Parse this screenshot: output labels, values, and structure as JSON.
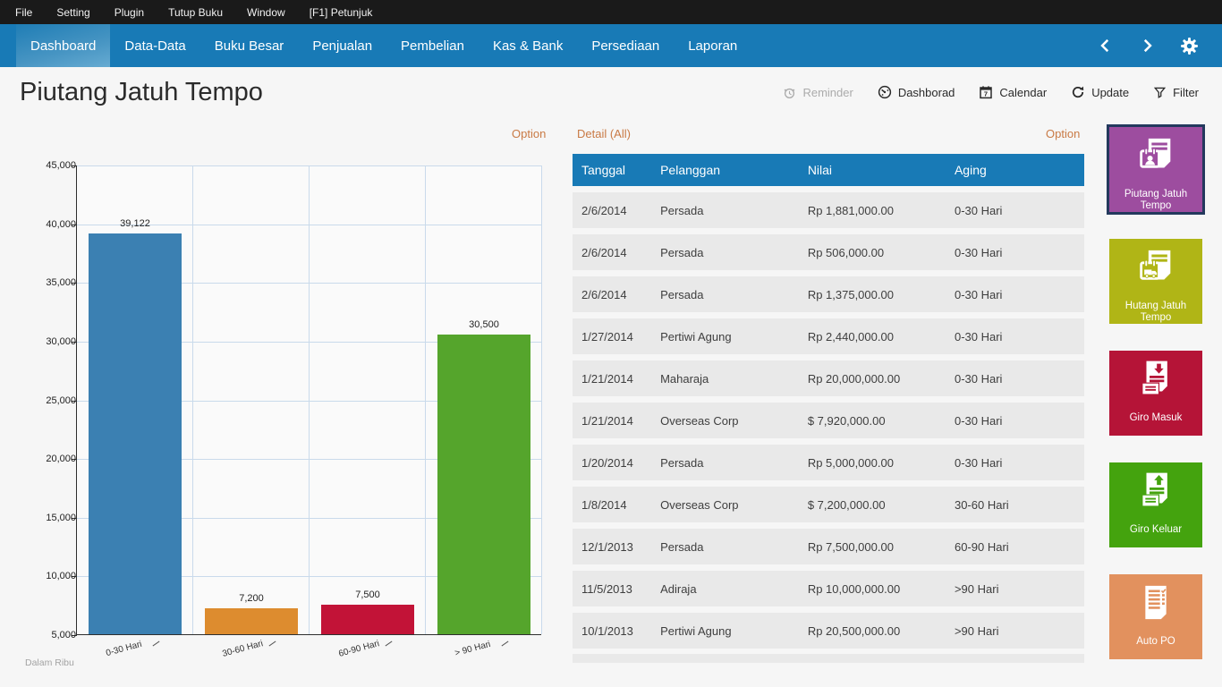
{
  "menubar": {
    "items": [
      "File",
      "Setting",
      "Plugin",
      "Tutup Buku",
      "Window",
      "[F1] Petunjuk"
    ]
  },
  "navbar": {
    "tabs": [
      {
        "label": "Dashboard",
        "active": true
      },
      {
        "label": "Data-Data",
        "active": false
      },
      {
        "label": "Buku Besar",
        "active": false
      },
      {
        "label": "Penjualan",
        "active": false
      },
      {
        "label": "Pembelian",
        "active": false
      },
      {
        "label": "Kas & Bank",
        "active": false
      },
      {
        "label": "Persediaan",
        "active": false
      },
      {
        "label": "Laporan",
        "active": false
      }
    ],
    "icons": [
      "chevron-left-icon",
      "chevron-right-icon",
      "gear-icon"
    ],
    "color": "#187ab6"
  },
  "header": {
    "title": "Piutang Jatuh Tempo",
    "actions": [
      {
        "label": "Reminder",
        "icon": "alarm-icon",
        "disabled": true
      },
      {
        "label": "Dashborad",
        "icon": "gauge-icon",
        "disabled": false
      },
      {
        "label": "Calendar",
        "icon": "calendar-icon",
        "disabled": false
      },
      {
        "label": "Update",
        "icon": "refresh-icon",
        "disabled": false
      },
      {
        "label": "Filter",
        "icon": "filter-icon",
        "disabled": false
      }
    ]
  },
  "chart_panel": {
    "option_label": "Option"
  },
  "chart_data": {
    "type": "bar",
    "title": "",
    "categories": [
      "0-30 Hari",
      "30-60 Hari",
      "60-90 Hari",
      "> 90 Hari"
    ],
    "values": [
      39122,
      7200,
      7500,
      30500
    ],
    "value_labels": [
      "39,122",
      "7,200",
      "7,500",
      "30,500"
    ],
    "colors": [
      "#3b80b2",
      "#dd8c2f",
      "#c21337",
      "#55a52c"
    ],
    "xlabel": "",
    "ylabel": "",
    "ylim": [
      5000,
      45000
    ],
    "ytick_step": 5000,
    "ytick_labels": [
      "5,000",
      "10,000",
      "15,000",
      "20,000",
      "25,000",
      "30,000",
      "35,000",
      "40,000",
      "45,000"
    ],
    "grid": true,
    "legend": false,
    "footnote": "Dalam Ribu"
  },
  "detail_panel": {
    "title": "Detail (All)",
    "option_label": "Option",
    "table": {
      "headers": [
        "Tanggal",
        "Pelanggan",
        "Nilai",
        "Aging"
      ],
      "rows": [
        [
          "2/6/2014",
          "Persada",
          "Rp 1,881,000.00",
          "0-30 Hari"
        ],
        [
          "2/6/2014",
          "Persada",
          "Rp 506,000.00",
          "0-30 Hari"
        ],
        [
          "2/6/2014",
          "Persada",
          "Rp 1,375,000.00",
          "0-30 Hari"
        ],
        [
          "1/27/2014",
          "Pertiwi Agung",
          "Rp 2,440,000.00",
          "0-30 Hari"
        ],
        [
          "1/21/2014",
          "Maharaja",
          "Rp 20,000,000.00",
          "0-30 Hari"
        ],
        [
          "1/21/2014",
          "Overseas Corp",
          "$ 7,920,000.00",
          "0-30 Hari"
        ],
        [
          "1/20/2014",
          "Persada",
          "Rp 5,000,000.00",
          "0-30 Hari"
        ],
        [
          "1/8/2014",
          "Overseas Corp",
          "$ 7,200,000.00",
          "30-60 Hari"
        ],
        [
          "12/1/2013",
          "Persada",
          "Rp 7,500,000.00",
          "60-90 Hari"
        ],
        [
          "11/5/2013",
          "Adiraja",
          "Rp 10,000,000.00",
          ">90 Hari"
        ],
        [
          "10/1/2013",
          "Pertiwi Agung",
          "Rp 20,500,000.00",
          ">90 Hari"
        ]
      ]
    }
  },
  "tiles": [
    {
      "label": "Piutang Jatuh Tempo",
      "color": "#9d4d9f",
      "selected": true,
      "icon": "receivable-due-icon"
    },
    {
      "label": "Hutang Jatuh Tempo",
      "color": "#b0b516",
      "selected": false,
      "icon": "payable-due-icon"
    },
    {
      "label": "Giro Masuk",
      "color": "#b51437",
      "selected": false,
      "icon": "giro-in-icon"
    },
    {
      "label": "Giro Keluar",
      "color": "#44a30e",
      "selected": false,
      "icon": "giro-out-icon"
    },
    {
      "label": "Auto PO",
      "color": "#e2915e",
      "selected": false,
      "icon": "auto-po-icon"
    }
  ]
}
